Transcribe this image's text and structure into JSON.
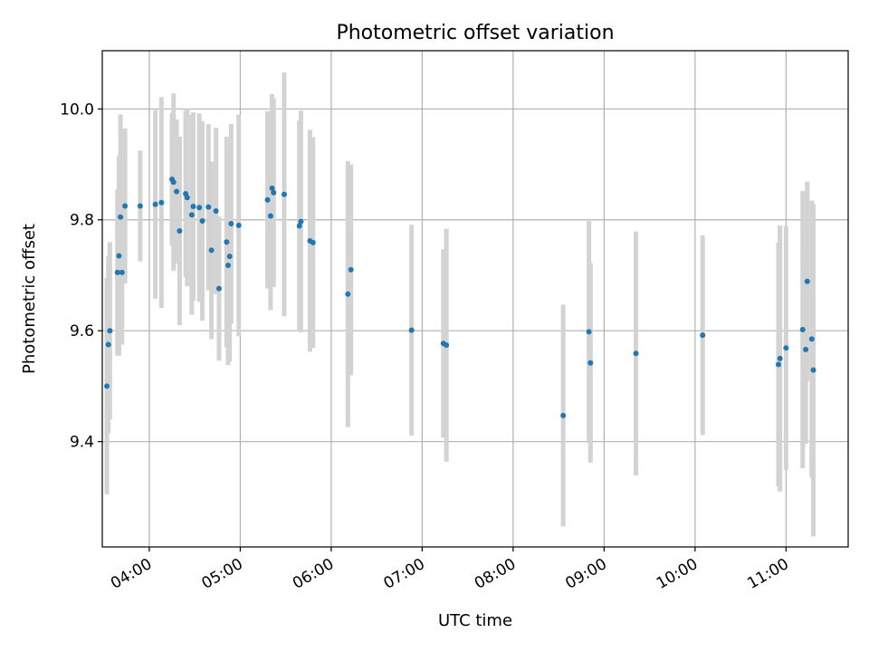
{
  "chart_data": {
    "type": "scatter",
    "title": "Photometric offset variation",
    "xlabel": "UTC time",
    "ylabel": "Photometric offset",
    "x_axis": "time",
    "xlim": [
      "03:29",
      "11:41"
    ],
    "ylim": [
      9.21,
      10.105
    ],
    "x_ticks": [
      "04:00",
      "05:00",
      "06:00",
      "07:00",
      "08:00",
      "09:00",
      "10:00",
      "11:00"
    ],
    "y_ticks": [
      "9.4",
      "9.6",
      "9.8",
      "10.0"
    ],
    "grid": true,
    "colors": {
      "point": "#1f77b4",
      "errorbar": "#d3d3d3"
    },
    "series": [
      {
        "x": [
          "03:32",
          "03:33",
          "03:34",
          "03:39",
          "03:40",
          "03:41",
          "03:42",
          "03:44",
          "03:54",
          "04:04",
          "04:08",
          "04:15",
          "04:16",
          "04:18",
          "04:20",
          "04:24",
          "04:25",
          "04:28",
          "04:29",
          "04:33",
          "04:35",
          "04:39",
          "04:41",
          "04:44",
          "04:46",
          "04:51",
          "04:52",
          "04:53",
          "04:54",
          "04:59",
          "05:18",
          "05:20",
          "05:21",
          "05:22",
          "05:29",
          "05:39",
          "05:40",
          "05:46",
          "05:48",
          "06:11",
          "06:13",
          "06:53",
          "07:14",
          "07:16",
          "08:33",
          "08:50",
          "08:51",
          "09:21",
          "10:05",
          "10:55",
          "10:56",
          "11:00",
          "11:11",
          "11:13",
          "11:14",
          "11:17",
          "11:18"
        ],
        "y": [
          9.5,
          9.575,
          9.6,
          9.705,
          9.735,
          9.805,
          9.705,
          9.825,
          9.825,
          9.828,
          9.831,
          9.873,
          9.868,
          9.851,
          9.78,
          9.847,
          9.84,
          9.809,
          9.824,
          9.822,
          9.798,
          9.823,
          9.745,
          9.816,
          9.676,
          9.76,
          9.718,
          9.734,
          9.793,
          9.79,
          9.836,
          9.807,
          9.857,
          9.849,
          9.846,
          9.789,
          9.797,
          9.762,
          9.759,
          9.666,
          9.71,
          9.601,
          9.577,
          9.574,
          9.447,
          9.598,
          9.542,
          9.559,
          9.592,
          9.539,
          9.55,
          9.569,
          9.602,
          9.566,
          9.689,
          9.585,
          9.529
        ],
        "yerr": [
          0.195,
          0.16,
          0.16,
          0.15,
          0.18,
          0.185,
          0.13,
          0.14,
          0.1,
          0.17,
          0.19,
          0.12,
          0.16,
          0.13,
          0.17,
          0.15,
          0.16,
          0.18,
          0.17,
          0.17,
          0.18,
          0.15,
          0.16,
          0.15,
          0.13,
          0.19,
          0.18,
          0.19,
          0.18,
          0.2,
          0.16,
          0.17,
          0.17,
          0.17,
          0.22,
          0.19,
          0.2,
          0.2,
          0.19,
          0.24,
          0.19,
          0.19,
          0.17,
          0.21,
          0.2,
          0.2,
          0.18,
          0.22,
          0.18,
          0.22,
          0.24,
          0.22,
          0.25,
          0.17,
          0.18,
          0.25,
          0.3
        ]
      }
    ]
  }
}
